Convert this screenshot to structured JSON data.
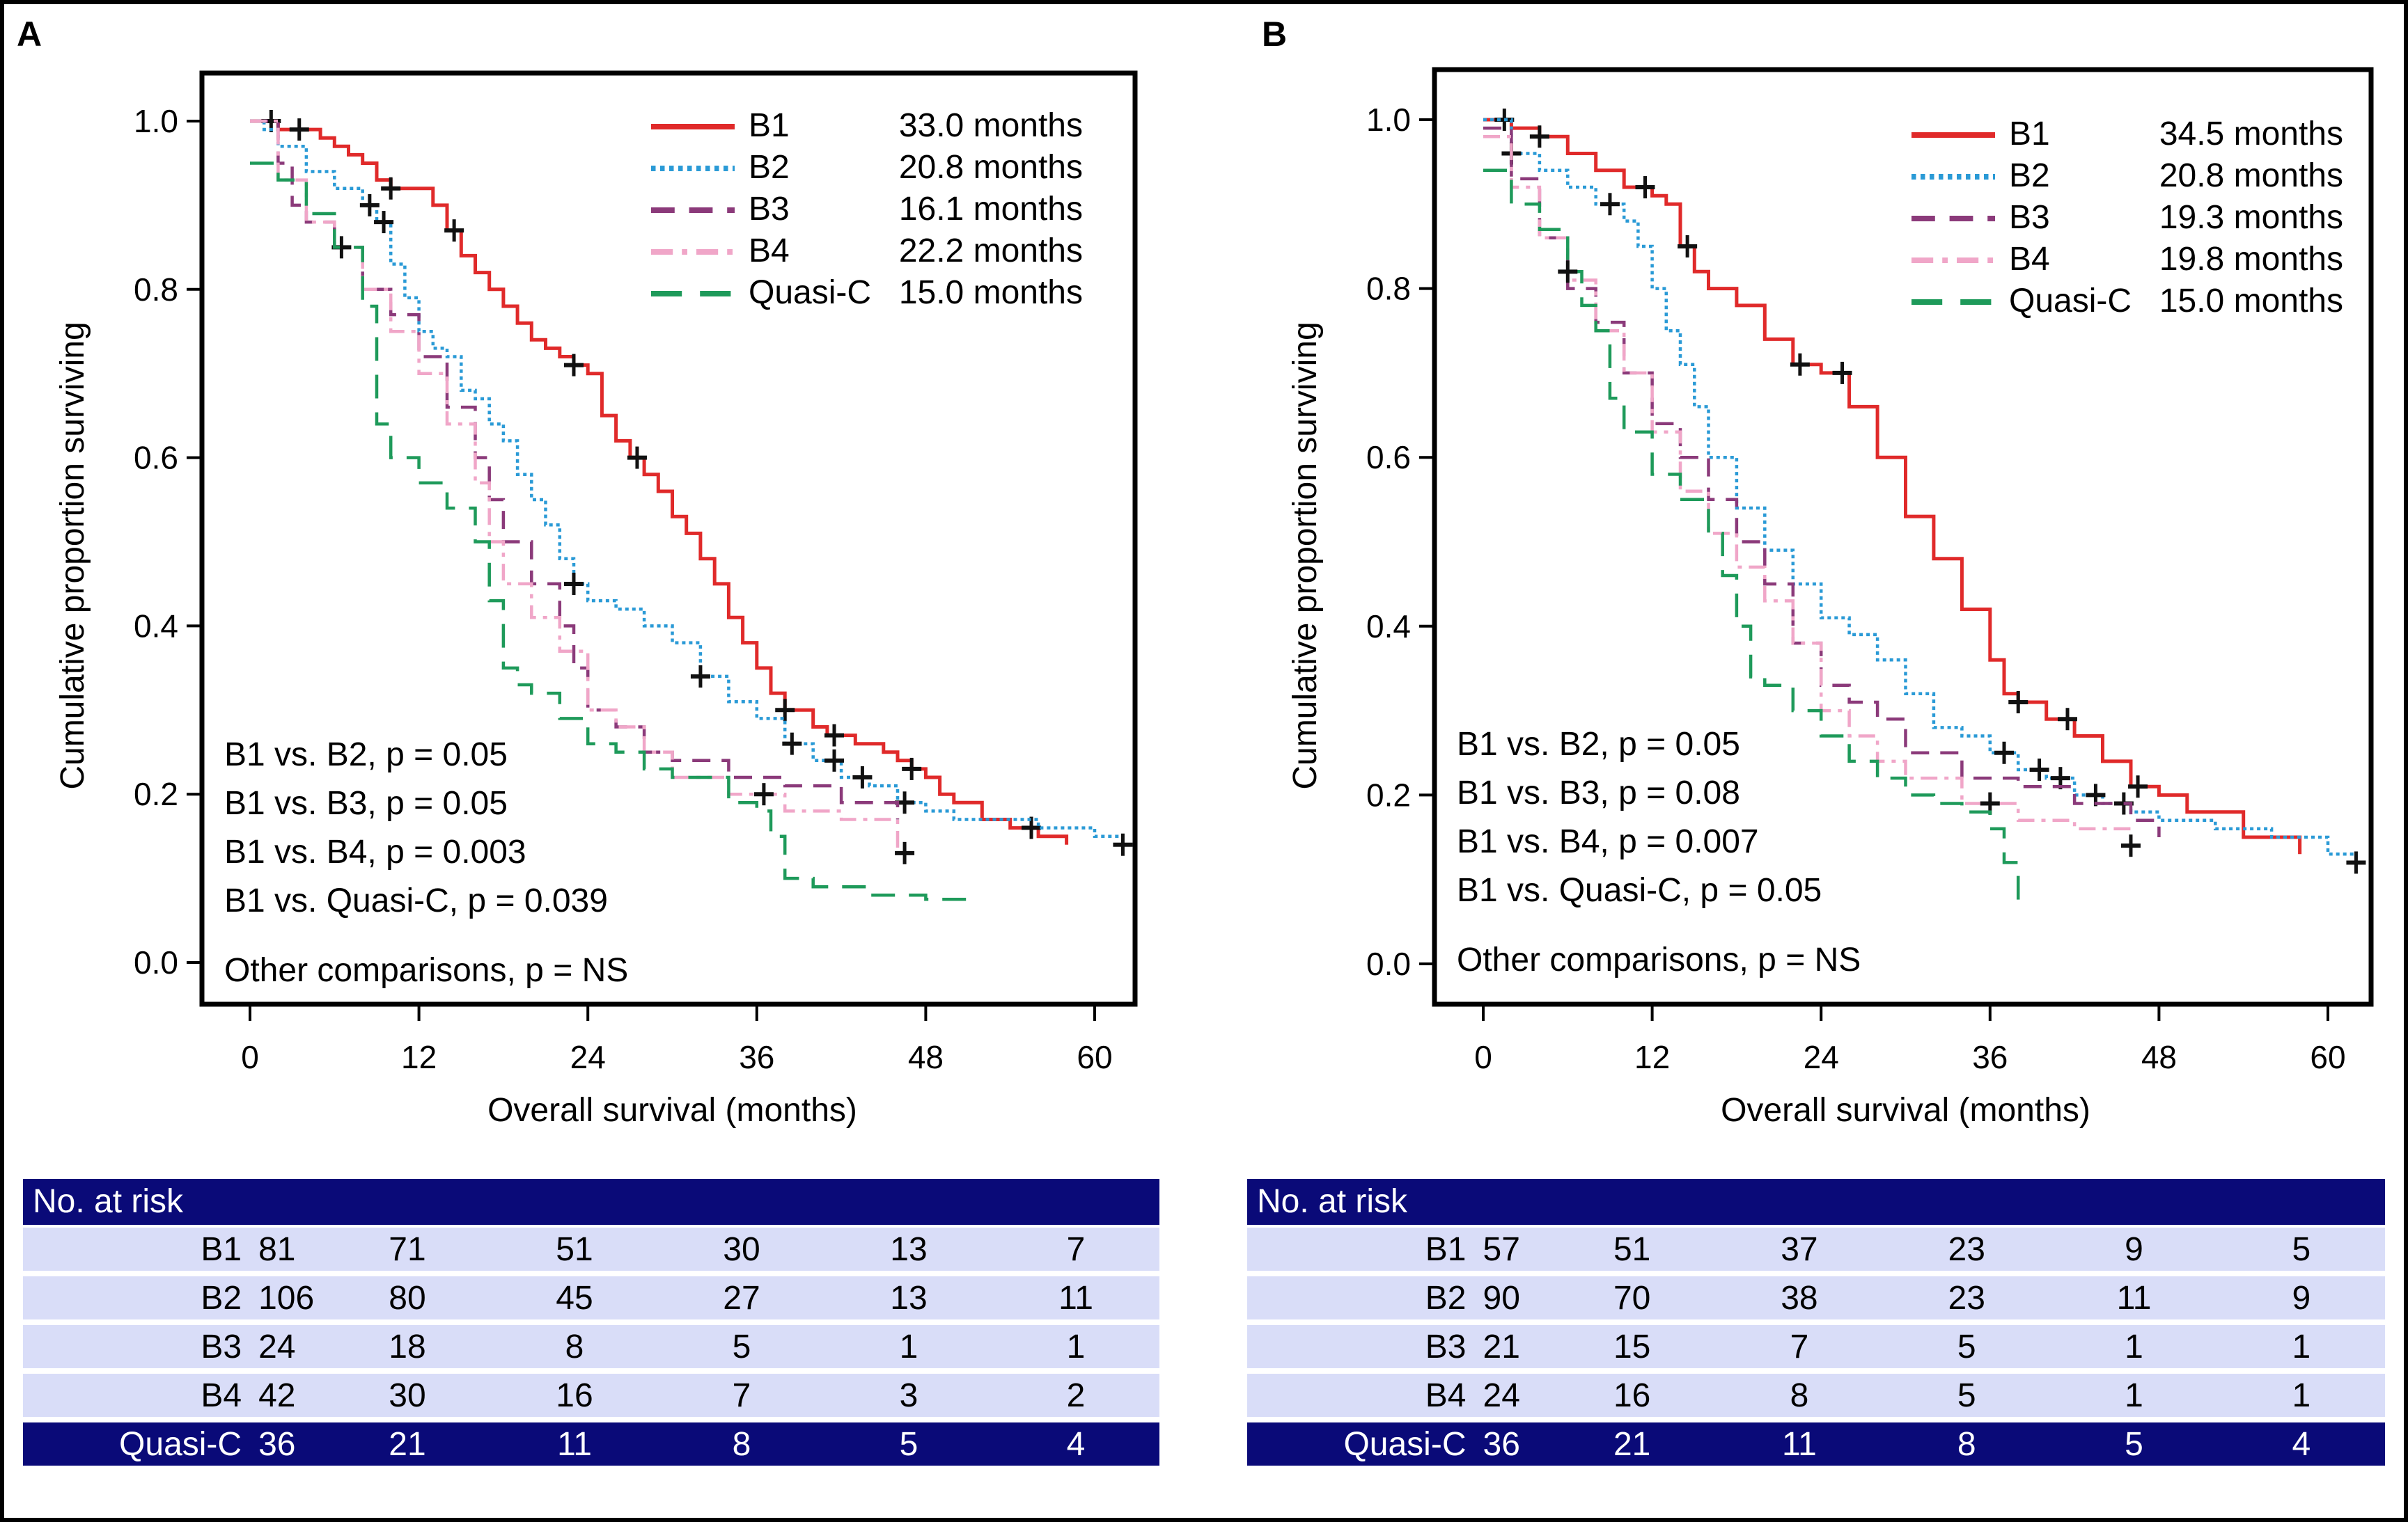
{
  "panels": [
    {
      "letter": "A",
      "risk_table": {
        "header": "No. at risk",
        "rows": [
          {
            "label": "B1",
            "values": [
              "81",
              "71",
              "51",
              "30",
              "13",
              "7"
            ]
          },
          {
            "label": "B2",
            "values": [
              "106",
              "80",
              "45",
              "27",
              "13",
              "11"
            ]
          },
          {
            "label": "B3",
            "values": [
              "24",
              "18",
              "8",
              "5",
              "1",
              "1"
            ]
          },
          {
            "label": "B4",
            "values": [
              "42",
              "30",
              "16",
              "7",
              "3",
              "2"
            ]
          },
          {
            "label": "Quasi-C",
            "values": [
              "36",
              "21",
              "11",
              "8",
              "5",
              "4"
            ]
          }
        ]
      }
    },
    {
      "letter": "B",
      "risk_table": {
        "header": "No. at risk",
        "rows": [
          {
            "label": "B1",
            "values": [
              "57",
              "51",
              "37",
              "23",
              "9",
              "5"
            ]
          },
          {
            "label": "B2",
            "values": [
              "90",
              "70",
              "38",
              "23",
              "11",
              "9"
            ]
          },
          {
            "label": "B3",
            "values": [
              "21",
              "15",
              "7",
              "5",
              "1",
              "1"
            ]
          },
          {
            "label": "B4",
            "values": [
              "24",
              "16",
              "8",
              "5",
              "1",
              "1"
            ]
          },
          {
            "label": "Quasi-C",
            "values": [
              "36",
              "21",
              "11",
              "8",
              "5",
              "4"
            ]
          }
        ]
      }
    }
  ],
  "chart_data": [
    {
      "type": "line",
      "panel": "A",
      "title": "",
      "xlabel": "Overall survival (months)",
      "ylabel": "Cumulative proportion surviving",
      "xlim": [
        0,
        60
      ],
      "ylim": [
        0,
        1.0
      ],
      "xticks": [
        "0",
        "12",
        "24",
        "36",
        "48",
        "60"
      ],
      "yticks": [
        "0.0",
        "0.2",
        "0.4",
        "0.6",
        "0.8",
        "1.0"
      ],
      "legend_position": "top-right",
      "series": [
        {
          "name": "B1",
          "median": "33.0 months",
          "color": "#e02a2a",
          "style": "solid",
          "x": [
            0,
            1,
            2,
            4,
            5,
            6,
            7,
            8,
            9,
            10,
            11,
            12,
            13,
            14,
            15,
            16,
            17,
            18,
            19,
            20,
            21,
            22,
            23,
            24,
            25,
            26,
            27,
            28,
            29,
            30,
            31,
            32,
            33,
            34,
            35,
            36,
            37,
            38,
            39,
            40,
            41,
            42,
            43,
            44,
            45,
            46,
            47,
            48,
            49,
            50,
            52,
            54,
            56,
            58
          ],
          "y": [
            1.0,
            1.0,
            0.99,
            0.99,
            0.98,
            0.97,
            0.96,
            0.95,
            0.93,
            0.92,
            0.92,
            0.92,
            0.9,
            0.87,
            0.84,
            0.82,
            0.8,
            0.78,
            0.76,
            0.74,
            0.73,
            0.72,
            0.71,
            0.7,
            0.65,
            0.62,
            0.6,
            0.58,
            0.56,
            0.53,
            0.51,
            0.48,
            0.45,
            0.41,
            0.38,
            0.35,
            0.32,
            0.3,
            0.3,
            0.28,
            0.27,
            0.27,
            0.26,
            0.26,
            0.25,
            0.24,
            0.23,
            0.22,
            0.2,
            0.19,
            0.17,
            0.16,
            0.15,
            0.14
          ],
          "censored_x": [
            1.5,
            3.5,
            10,
            14.5,
            23,
            27.5,
            38,
            41.5,
            47,
            55.5
          ]
        },
        {
          "name": "B2",
          "median": "20.8 months",
          "color": "#2a9ad6",
          "style": "dotted",
          "x": [
            0,
            1,
            2,
            4,
            6,
            8,
            9,
            10,
            11,
            12,
            13,
            14,
            15,
            16,
            17,
            18,
            19,
            20,
            21,
            22,
            23,
            24,
            25,
            26,
            28,
            30,
            32,
            34,
            36,
            38,
            40,
            42,
            44,
            46,
            48,
            50,
            52,
            56,
            60,
            62
          ],
          "y": [
            1.0,
            0.99,
            0.97,
            0.94,
            0.92,
            0.9,
            0.88,
            0.83,
            0.79,
            0.75,
            0.73,
            0.72,
            0.68,
            0.67,
            0.64,
            0.62,
            0.58,
            0.55,
            0.52,
            0.48,
            0.45,
            0.43,
            0.43,
            0.42,
            0.4,
            0.38,
            0.34,
            0.31,
            0.29,
            0.26,
            0.24,
            0.22,
            0.21,
            0.19,
            0.18,
            0.17,
            0.17,
            0.16,
            0.15,
            0.14
          ],
          "censored_x": [
            8.5,
            9.5,
            23,
            32,
            38.5,
            41.5,
            43.5,
            46.5,
            62
          ]
        },
        {
          "name": "B3",
          "median": "16.1 months",
          "color": "#8b3a7a",
          "style": "dashed",
          "x": [
            0,
            2,
            3,
            4,
            6,
            8,
            10,
            12,
            14,
            16,
            17,
            18,
            20,
            22,
            23,
            24,
            26,
            28,
            30,
            34,
            38,
            42,
            46
          ],
          "y": [
            1.0,
            0.95,
            0.9,
            0.88,
            0.85,
            0.8,
            0.77,
            0.72,
            0.66,
            0.6,
            0.55,
            0.5,
            0.45,
            0.4,
            0.35,
            0.3,
            0.28,
            0.25,
            0.24,
            0.22,
            0.21,
            0.19,
            0.17
          ]
        },
        {
          "name": "B4",
          "median": "22.2 months",
          "color": "#f0a6c8",
          "style": "dash-dot",
          "x": [
            0,
            2,
            4,
            6,
            8,
            10,
            12,
            14,
            16,
            17,
            18,
            20,
            22,
            24,
            26,
            28,
            30,
            34,
            38,
            42,
            46
          ],
          "y": [
            1.0,
            0.93,
            0.88,
            0.85,
            0.8,
            0.75,
            0.7,
            0.64,
            0.57,
            0.5,
            0.45,
            0.41,
            0.37,
            0.3,
            0.28,
            0.25,
            0.22,
            0.2,
            0.18,
            0.17,
            0.13
          ],
          "censored_x": [
            6.5,
            36.5,
            46.5
          ]
        },
        {
          "name": "Quasi-C",
          "median": "15.0 months",
          "color": "#1e9a5a",
          "style": "long-dash",
          "x": [
            0,
            2,
            4,
            6,
            8,
            9,
            10,
            12,
            14,
            16,
            17,
            18,
            19,
            20,
            22,
            24,
            26,
            28,
            30,
            34,
            36,
            37,
            38,
            40,
            44,
            48,
            51
          ],
          "y": [
            0.95,
            0.93,
            0.89,
            0.85,
            0.78,
            0.64,
            0.6,
            0.57,
            0.54,
            0.5,
            0.43,
            0.35,
            0.33,
            0.32,
            0.29,
            0.26,
            0.25,
            0.23,
            0.22,
            0.19,
            0.18,
            0.15,
            0.1,
            0.09,
            0.08,
            0.075,
            0.07
          ]
        }
      ],
      "annotations": [
        "B1 vs. B2, p = 0.05",
        "B1 vs. B3, p = 0.05",
        "B1 vs. B4, p = 0.003",
        "B1 vs. Quasi-C, p = 0.039",
        "Other comparisons, p = NS"
      ]
    },
    {
      "type": "line",
      "panel": "B",
      "title": "",
      "xlabel": "Overall survival (months)",
      "ylabel": "Cumulative proportion surviving",
      "xlim": [
        0,
        60
      ],
      "ylim": [
        0,
        1.0
      ],
      "xticks": [
        "0",
        "12",
        "24",
        "36",
        "48",
        "60"
      ],
      "yticks": [
        "0.0",
        "0.2",
        "0.4",
        "0.6",
        "0.8",
        "1.0"
      ],
      "legend_position": "top-right",
      "series": [
        {
          "name": "B1",
          "median": "34.5 months",
          "color": "#e02a2a",
          "style": "solid",
          "x": [
            0,
            2,
            4,
            6,
            8,
            10,
            12,
            13,
            14,
            15,
            16,
            18,
            20,
            22,
            24,
            26,
            28,
            30,
            32,
            34,
            36,
            37,
            38,
            40,
            42,
            44,
            46,
            48,
            50,
            54,
            58
          ],
          "y": [
            1.0,
            0.99,
            0.98,
            0.96,
            0.94,
            0.92,
            0.91,
            0.9,
            0.85,
            0.82,
            0.8,
            0.78,
            0.74,
            0.71,
            0.7,
            0.66,
            0.6,
            0.53,
            0.48,
            0.42,
            0.36,
            0.32,
            0.31,
            0.29,
            0.27,
            0.24,
            0.21,
            0.2,
            0.18,
            0.15,
            0.13
          ],
          "censored_x": [
            1.5,
            4,
            11.5,
            14.5,
            22.5,
            25.5,
            38,
            41.5,
            46.5
          ]
        },
        {
          "name": "B2",
          "median": "20.8 months",
          "color": "#2a9ad6",
          "style": "dotted",
          "x": [
            0,
            2,
            4,
            6,
            8,
            10,
            11,
            12,
            13,
            14,
            15,
            16,
            18,
            20,
            22,
            24,
            26,
            28,
            30,
            32,
            34,
            36,
            38,
            40,
            42,
            44,
            46,
            48,
            52,
            56,
            60,
            62
          ],
          "y": [
            1.0,
            0.96,
            0.94,
            0.92,
            0.9,
            0.88,
            0.85,
            0.8,
            0.75,
            0.71,
            0.66,
            0.6,
            0.54,
            0.49,
            0.45,
            0.41,
            0.39,
            0.36,
            0.32,
            0.28,
            0.27,
            0.25,
            0.23,
            0.22,
            0.2,
            0.19,
            0.18,
            0.17,
            0.16,
            0.15,
            0.13,
            0.12
          ],
          "censored_x": [
            2,
            9,
            37,
            39.5,
            41,
            43.5,
            45.5,
            62
          ]
        },
        {
          "name": "B3",
          "median": "19.3 months",
          "color": "#8b3a7a",
          "style": "dashed",
          "x": [
            0,
            2,
            4,
            6,
            8,
            10,
            12,
            14,
            16,
            18,
            20,
            22,
            24,
            26,
            28,
            30,
            34,
            38,
            42,
            46,
            48
          ],
          "y": [
            0.99,
            0.93,
            0.86,
            0.8,
            0.76,
            0.7,
            0.64,
            0.6,
            0.55,
            0.5,
            0.45,
            0.38,
            0.33,
            0.31,
            0.29,
            0.25,
            0.22,
            0.21,
            0.19,
            0.17,
            0.15
          ]
        },
        {
          "name": "B4",
          "median": "19.8 months",
          "color": "#f0a6c8",
          "style": "dash-dot",
          "x": [
            0,
            2,
            4,
            6,
            8,
            10,
            12,
            14,
            16,
            18,
            20,
            22,
            24,
            26,
            28,
            30,
            34,
            38,
            42,
            46
          ],
          "y": [
            0.98,
            0.92,
            0.86,
            0.81,
            0.75,
            0.7,
            0.63,
            0.56,
            0.51,
            0.47,
            0.43,
            0.38,
            0.3,
            0.27,
            0.24,
            0.22,
            0.19,
            0.17,
            0.16,
            0.14
          ],
          "censored_x": [
            36,
            46
          ]
        },
        {
          "name": "Quasi-C",
          "median": "15.0 months",
          "color": "#1e9a5a",
          "style": "long-dash",
          "x": [
            0,
            2,
            4,
            6,
            7,
            8,
            9,
            10,
            12,
            14,
            16,
            17,
            18,
            19,
            20,
            22,
            24,
            26,
            28,
            30,
            32,
            34,
            36,
            37,
            38
          ],
          "y": [
            0.94,
            0.9,
            0.87,
            0.82,
            0.78,
            0.75,
            0.67,
            0.63,
            0.58,
            0.55,
            0.51,
            0.46,
            0.4,
            0.34,
            0.33,
            0.3,
            0.27,
            0.24,
            0.22,
            0.2,
            0.19,
            0.18,
            0.16,
            0.12,
            0.07
          ],
          "censored_x": [
            6
          ]
        }
      ],
      "annotations": [
        "B1 vs. B2, p = 0.05",
        "B1 vs. B3, p = 0.08",
        "B1 vs. B4, p = 0.007",
        "B1 vs. Quasi-C, p = 0.05",
        "Other comparisons, p = NS"
      ]
    }
  ]
}
